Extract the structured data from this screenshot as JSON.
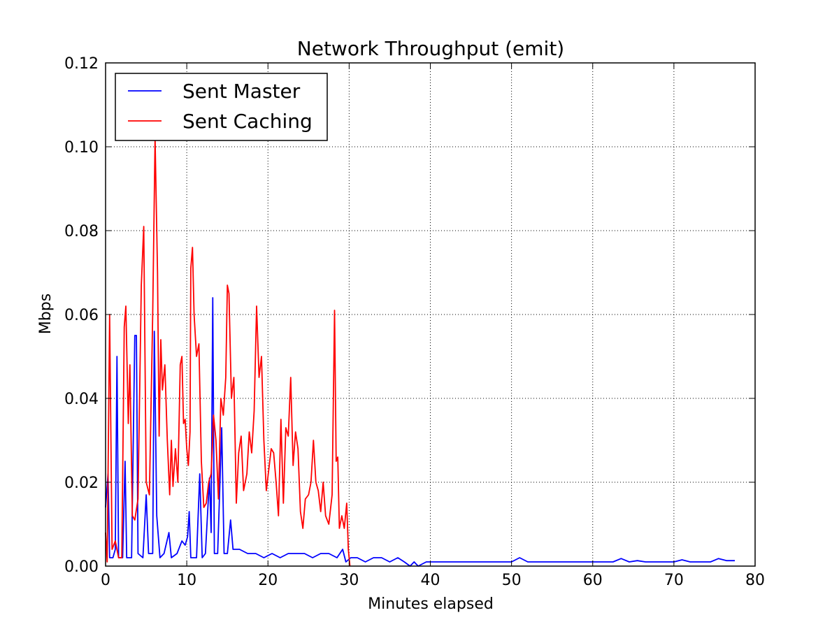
{
  "chart_data": {
    "type": "line",
    "title": "Network Throughput (emit)",
    "xlabel": "Minutes elapsed",
    "ylabel": "Mbps",
    "xlim": [
      0,
      80
    ],
    "ylim": [
      0,
      0.12
    ],
    "x_ticks": [
      0,
      10,
      20,
      30,
      40,
      50,
      60,
      70,
      80
    ],
    "x_tick_labels": [
      "0",
      "10",
      "20",
      "30",
      "40",
      "50",
      "60",
      "70",
      "80"
    ],
    "y_ticks": [
      0,
      0.02,
      0.04,
      0.06,
      0.08,
      0.1,
      0.12
    ],
    "y_tick_labels": [
      "0.00",
      "0.02",
      "0.04",
      "0.06",
      "0.08",
      "0.10",
      "0.12"
    ],
    "grid": true,
    "grid_style": "dotted",
    "legend_position": "top-left",
    "series": [
      {
        "name": "Sent Master",
        "color": "#0000ff",
        "points": [
          [
            0.0,
            0.014
          ],
          [
            0.3,
            0.022
          ],
          [
            0.5,
            0.002
          ],
          [
            0.9,
            0.002
          ],
          [
            1.2,
            0.004
          ],
          [
            1.4,
            0.05
          ],
          [
            1.6,
            0.002
          ],
          [
            2.1,
            0.002
          ],
          [
            2.4,
            0.025
          ],
          [
            2.6,
            0.002
          ],
          [
            3.2,
            0.002
          ],
          [
            3.6,
            0.055
          ],
          [
            3.8,
            0.055
          ],
          [
            4.0,
            0.003
          ],
          [
            4.6,
            0.002
          ],
          [
            5.0,
            0.017
          ],
          [
            5.3,
            0.003
          ],
          [
            5.8,
            0.003
          ],
          [
            6.0,
            0.056
          ],
          [
            6.3,
            0.012
          ],
          [
            6.7,
            0.002
          ],
          [
            7.2,
            0.003
          ],
          [
            7.8,
            0.008
          ],
          [
            8.1,
            0.002
          ],
          [
            8.8,
            0.003
          ],
          [
            9.4,
            0.006
          ],
          [
            9.8,
            0.005
          ],
          [
            10.1,
            0.007
          ],
          [
            10.3,
            0.013
          ],
          [
            10.5,
            0.002
          ],
          [
            11.2,
            0.002
          ],
          [
            11.6,
            0.022
          ],
          [
            11.9,
            0.002
          ],
          [
            12.3,
            0.003
          ],
          [
            12.8,
            0.021
          ],
          [
            13.0,
            0.008
          ],
          [
            13.2,
            0.064
          ],
          [
            13.4,
            0.003
          ],
          [
            13.8,
            0.003
          ],
          [
            14.3,
            0.033
          ],
          [
            14.6,
            0.003
          ],
          [
            15.0,
            0.003
          ],
          [
            15.4,
            0.011
          ],
          [
            15.7,
            0.004
          ],
          [
            16.5,
            0.004
          ],
          [
            17.5,
            0.003
          ],
          [
            18.5,
            0.003
          ],
          [
            19.5,
            0.002
          ],
          [
            20.5,
            0.003
          ],
          [
            21.5,
            0.002
          ],
          [
            22.5,
            0.003
          ],
          [
            23.5,
            0.003
          ],
          [
            24.5,
            0.003
          ],
          [
            25.5,
            0.002
          ],
          [
            26.5,
            0.003
          ],
          [
            27.5,
            0.003
          ],
          [
            28.5,
            0.002
          ],
          [
            29.2,
            0.004
          ],
          [
            29.6,
            0.001
          ],
          [
            30.2,
            0.002
          ],
          [
            31.0,
            0.002
          ],
          [
            32.0,
            0.001
          ],
          [
            33.0,
            0.002
          ],
          [
            34.0,
            0.002
          ],
          [
            35.0,
            0.001
          ],
          [
            36.0,
            0.002
          ],
          [
            36.8,
            0.001
          ],
          [
            37.5,
            0.0
          ],
          [
            38.0,
            0.001
          ],
          [
            38.5,
            0.0
          ],
          [
            39.5,
            0.001
          ],
          [
            45.0,
            0.001
          ],
          [
            50.0,
            0.001
          ],
          [
            51.0,
            0.002
          ],
          [
            52.0,
            0.001
          ],
          [
            55.0,
            0.001
          ],
          [
            60.0,
            0.001
          ],
          [
            62.5,
            0.001
          ],
          [
            63.5,
            0.0018
          ],
          [
            64.5,
            0.001
          ],
          [
            65.5,
            0.0013
          ],
          [
            66.5,
            0.001
          ],
          [
            70.0,
            0.001
          ],
          [
            71.0,
            0.0015
          ],
          [
            72.0,
            0.001
          ],
          [
            74.5,
            0.001
          ],
          [
            75.5,
            0.0018
          ],
          [
            76.5,
            0.0013
          ],
          [
            77.5,
            0.0013
          ]
        ]
      },
      {
        "name": "Sent Caching",
        "color": "#ff0000",
        "points": [
          [
            0.0,
            0.008
          ],
          [
            0.2,
            0.001
          ],
          [
            0.5,
            0.06
          ],
          [
            0.8,
            0.004
          ],
          [
            1.2,
            0.006
          ],
          [
            1.6,
            0.002
          ],
          [
            2.0,
            0.002
          ],
          [
            2.3,
            0.057
          ],
          [
            2.5,
            0.062
          ],
          [
            2.8,
            0.034
          ],
          [
            3.0,
            0.048
          ],
          [
            3.3,
            0.012
          ],
          [
            3.6,
            0.011
          ],
          [
            4.0,
            0.016
          ],
          [
            4.4,
            0.067
          ],
          [
            4.7,
            0.081
          ],
          [
            5.0,
            0.02
          ],
          [
            5.4,
            0.017
          ],
          [
            5.8,
            0.06
          ],
          [
            6.1,
            0.102
          ],
          [
            6.4,
            0.07
          ],
          [
            6.6,
            0.031
          ],
          [
            6.8,
            0.054
          ],
          [
            7.0,
            0.042
          ],
          [
            7.3,
            0.048
          ],
          [
            7.6,
            0.03
          ],
          [
            7.9,
            0.017
          ],
          [
            8.1,
            0.03
          ],
          [
            8.3,
            0.019
          ],
          [
            8.6,
            0.028
          ],
          [
            8.9,
            0.02
          ],
          [
            9.2,
            0.048
          ],
          [
            9.4,
            0.05
          ],
          [
            9.6,
            0.034
          ],
          [
            9.8,
            0.035
          ],
          [
            10.0,
            0.028
          ],
          [
            10.2,
            0.024
          ],
          [
            10.4,
            0.032
          ],
          [
            10.5,
            0.071
          ],
          [
            10.7,
            0.076
          ],
          [
            10.9,
            0.06
          ],
          [
            11.2,
            0.05
          ],
          [
            11.5,
            0.053
          ],
          [
            11.8,
            0.025
          ],
          [
            12.1,
            0.014
          ],
          [
            12.4,
            0.015
          ],
          [
            12.7,
            0.02
          ],
          [
            13.0,
            0.022
          ],
          [
            13.3,
            0.036
          ],
          [
            13.6,
            0.03
          ],
          [
            13.9,
            0.016
          ],
          [
            14.2,
            0.04
          ],
          [
            14.5,
            0.036
          ],
          [
            14.8,
            0.045
          ],
          [
            15.0,
            0.067
          ],
          [
            15.2,
            0.065
          ],
          [
            15.5,
            0.04
          ],
          [
            15.8,
            0.045
          ],
          [
            16.1,
            0.015
          ],
          [
            16.4,
            0.027
          ],
          [
            16.7,
            0.031
          ],
          [
            17.0,
            0.018
          ],
          [
            17.4,
            0.022
          ],
          [
            17.7,
            0.032
          ],
          [
            18.0,
            0.027
          ],
          [
            18.3,
            0.037
          ],
          [
            18.6,
            0.062
          ],
          [
            18.9,
            0.045
          ],
          [
            19.2,
            0.05
          ],
          [
            19.5,
            0.03
          ],
          [
            19.8,
            0.018
          ],
          [
            20.1,
            0.023
          ],
          [
            20.4,
            0.028
          ],
          [
            20.7,
            0.027
          ],
          [
            21.0,
            0.02
          ],
          [
            21.3,
            0.012
          ],
          [
            21.6,
            0.035
          ],
          [
            21.9,
            0.015
          ],
          [
            22.2,
            0.033
          ],
          [
            22.5,
            0.031
          ],
          [
            22.8,
            0.045
          ],
          [
            23.1,
            0.024
          ],
          [
            23.4,
            0.032
          ],
          [
            23.7,
            0.028
          ],
          [
            24.0,
            0.013
          ],
          [
            24.3,
            0.009
          ],
          [
            24.6,
            0.016
          ],
          [
            25.0,
            0.017
          ],
          [
            25.3,
            0.02
          ],
          [
            25.6,
            0.03
          ],
          [
            25.9,
            0.02
          ],
          [
            26.2,
            0.018
          ],
          [
            26.5,
            0.013
          ],
          [
            26.8,
            0.02
          ],
          [
            27.1,
            0.012
          ],
          [
            27.5,
            0.01
          ],
          [
            27.9,
            0.017
          ],
          [
            28.2,
            0.061
          ],
          [
            28.4,
            0.025
          ],
          [
            28.6,
            0.026
          ],
          [
            28.8,
            0.009
          ],
          [
            29.1,
            0.012
          ],
          [
            29.4,
            0.009
          ],
          [
            29.7,
            0.015
          ],
          [
            29.9,
            0.004
          ],
          [
            30.1,
            0.0
          ]
        ]
      }
    ]
  }
}
